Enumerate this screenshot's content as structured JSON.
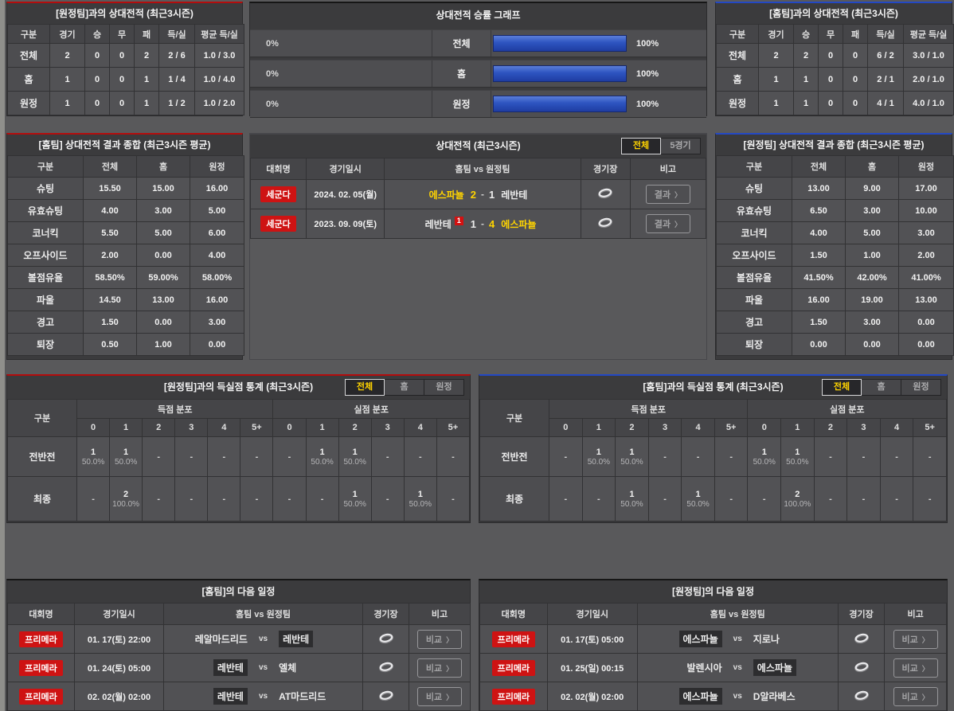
{
  "colors": {
    "accent_yellow": "#ffd400",
    "badge_red": "#ce1313",
    "bar_blue": "#2d54c0",
    "panel_border_red": "#b30d0d",
    "panel_border_blue": "#2348c4",
    "page_background": "#59595b"
  },
  "icons": {
    "chevron": "〉",
    "stadium": "stadium-ring"
  },
  "away_h2h": {
    "title": "[원정팀]과의 상대전적 (최근3시즌)",
    "headers": [
      "구분",
      "경기",
      "승",
      "무",
      "패",
      "득/실",
      "평균 득/실"
    ],
    "rows": [
      {
        "label": "전체",
        "cells": [
          "2",
          "0",
          "0",
          "2",
          "2 / 6",
          "1.0 / 3.0"
        ]
      },
      {
        "label": "홈",
        "cells": [
          "1",
          "0",
          "0",
          "1",
          "1 / 4",
          "1.0 / 4.0"
        ]
      },
      {
        "label": "원정",
        "cells": [
          "1",
          "0",
          "0",
          "1",
          "1 / 2",
          "1.0 / 2.0"
        ]
      }
    ]
  },
  "winrate_graph": {
    "title": "상대전적 승률 그래프",
    "rows": [
      {
        "label": "전체",
        "left_pct": "0%",
        "left_value": 0,
        "right_pct": "100%",
        "right_value": 100
      },
      {
        "label": "홈",
        "left_pct": "0%",
        "left_value": 0,
        "right_pct": "100%",
        "right_value": 100
      },
      {
        "label": "원정",
        "left_pct": "0%",
        "left_value": 0,
        "right_pct": "100%",
        "right_value": 100
      }
    ]
  },
  "home_h2h": {
    "title": "[홈팀]과의 상대전적 (최근3시즌)",
    "headers": [
      "구분",
      "경기",
      "승",
      "무",
      "패",
      "득/실",
      "평균 득/실"
    ],
    "rows": [
      {
        "label": "전체",
        "cells": [
          "2",
          "2",
          "0",
          "0",
          "6 / 2",
          "3.0 / 1.0"
        ]
      },
      {
        "label": "홈",
        "cells": [
          "1",
          "1",
          "0",
          "0",
          "2 / 1",
          "2.0 / 1.0"
        ]
      },
      {
        "label": "원정",
        "cells": [
          "1",
          "1",
          "0",
          "0",
          "4 / 1",
          "4.0 / 1.0"
        ]
      }
    ]
  },
  "home_summary": {
    "title": "[홈팀] 상대전적 결과 종합 (최근3시즌 평균)",
    "headers": [
      "구분",
      "전체",
      "홈",
      "원정"
    ],
    "rows": [
      {
        "label": "슈팅",
        "cells": [
          "15.50",
          "15.00",
          "16.00"
        ]
      },
      {
        "label": "유효슈팅",
        "cells": [
          "4.00",
          "3.00",
          "5.00"
        ]
      },
      {
        "label": "코너킥",
        "cells": [
          "5.50",
          "5.00",
          "6.00"
        ]
      },
      {
        "label": "오프사이드",
        "cells": [
          "2.00",
          "0.00",
          "4.00"
        ]
      },
      {
        "label": "볼점유율",
        "cells": [
          "58.50%",
          "59.00%",
          "58.00%"
        ]
      },
      {
        "label": "파울",
        "cells": [
          "14.50",
          "13.00",
          "16.00"
        ]
      },
      {
        "label": "경고",
        "cells": [
          "1.50",
          "0.00",
          "3.00"
        ]
      },
      {
        "label": "퇴장",
        "cells": [
          "0.50",
          "1.00",
          "0.00"
        ]
      }
    ]
  },
  "h2h_matches": {
    "title": "상대전적 (최근3시즌)",
    "tabs": [
      {
        "label": "전체",
        "active": true
      },
      {
        "label": "5경기",
        "active": false
      }
    ],
    "headers": [
      "대회명",
      "경기일시",
      "홈팀  vs  원정팀",
      "경기장",
      "비고"
    ],
    "button_label": "결과",
    "rows": [
      {
        "league": "세군다",
        "date": "2024. 02. 05(월)",
        "home": "에스파뇰",
        "home_win": true,
        "home_badge": null,
        "score_home": "2",
        "score_away": "1",
        "home_score_win": true,
        "away_score_win": false,
        "away": "레반테",
        "away_win": false,
        "away_badge": null
      },
      {
        "league": "세군다",
        "date": "2023. 09. 09(토)",
        "home": "레반테",
        "home_win": false,
        "home_badge": "1",
        "score_home": "1",
        "score_away": "4",
        "home_score_win": false,
        "away_score_win": true,
        "away": "에스파뇰",
        "away_win": true,
        "away_badge": null
      }
    ]
  },
  "away_summary": {
    "title": "[원정팀] 상대전적 결과 종합 (최근3시즌 평균)",
    "headers": [
      "구분",
      "전체",
      "홈",
      "원정"
    ],
    "rows": [
      {
        "label": "슈팅",
        "cells": [
          "13.00",
          "9.00",
          "17.00"
        ]
      },
      {
        "label": "유효슈팅",
        "cells": [
          "6.50",
          "3.00",
          "10.00"
        ]
      },
      {
        "label": "코너킥",
        "cells": [
          "4.00",
          "5.00",
          "3.00"
        ]
      },
      {
        "label": "오프사이드",
        "cells": [
          "1.50",
          "1.00",
          "2.00"
        ]
      },
      {
        "label": "볼점유율",
        "cells": [
          "41.50%",
          "42.00%",
          "41.00%"
        ]
      },
      {
        "label": "파울",
        "cells": [
          "16.00",
          "19.00",
          "13.00"
        ]
      },
      {
        "label": "경고",
        "cells": [
          "1.50",
          "3.00",
          "0.00"
        ]
      },
      {
        "label": "퇴장",
        "cells": [
          "0.00",
          "0.00",
          "0.00"
        ]
      }
    ]
  },
  "goal_stats_away": {
    "title": "[원정팀]과의 득실점 통계 (최근3시즌)",
    "tabs": [
      {
        "label": "전체",
        "active": true
      },
      {
        "label": "홈",
        "active": false
      },
      {
        "label": "원정",
        "active": false
      }
    ],
    "corner_label": "구분",
    "groups": [
      "득점 분포",
      "실점 분포"
    ],
    "score_headers": [
      "0",
      "1",
      "2",
      "3",
      "4",
      "5+"
    ],
    "empty_mark": "-",
    "rows": [
      {
        "label": "전반전",
        "goals": [
          {
            "n": "1",
            "p": "50.0%"
          },
          {
            "n": "1",
            "p": "50.0%"
          },
          null,
          null,
          null,
          null
        ],
        "conceded": [
          null,
          {
            "n": "1",
            "p": "50.0%"
          },
          {
            "n": "1",
            "p": "50.0%"
          },
          null,
          null,
          null
        ]
      },
      {
        "label": "최종",
        "goals": [
          null,
          {
            "n": "2",
            "p": "100.0%"
          },
          null,
          null,
          null,
          null
        ],
        "conceded": [
          null,
          null,
          {
            "n": "1",
            "p": "50.0%"
          },
          null,
          {
            "n": "1",
            "p": "50.0%"
          },
          null
        ]
      }
    ]
  },
  "goal_stats_home": {
    "title": "[홈팀]과의 득실점 통계 (최근3시즌)",
    "tabs": [
      {
        "label": "전체",
        "active": true
      },
      {
        "label": "홈",
        "active": false
      },
      {
        "label": "원정",
        "active": false
      }
    ],
    "corner_label": "구분",
    "groups": [
      "득점 분포",
      "실점 분포"
    ],
    "score_headers": [
      "0",
      "1",
      "2",
      "3",
      "4",
      "5+"
    ],
    "empty_mark": "-",
    "rows": [
      {
        "label": "전반전",
        "goals": [
          null,
          {
            "n": "1",
            "p": "50.0%"
          },
          {
            "n": "1",
            "p": "50.0%"
          },
          null,
          null,
          null
        ],
        "conceded": [
          {
            "n": "1",
            "p": "50.0%"
          },
          {
            "n": "1",
            "p": "50.0%"
          },
          null,
          null,
          null,
          null
        ]
      },
      {
        "label": "최종",
        "goals": [
          null,
          null,
          {
            "n": "1",
            "p": "50.0%"
          },
          null,
          {
            "n": "1",
            "p": "50.0%"
          },
          null
        ],
        "conceded": [
          null,
          {
            "n": "2",
            "p": "100.0%"
          },
          null,
          null,
          null,
          null
        ]
      }
    ]
  },
  "schedule_home": {
    "title": "[홈팀]의 다음 일정",
    "headers": [
      "대회명",
      "경기일시",
      "홈팀  vs  원정팀",
      "경기장",
      "비고"
    ],
    "button_label": "비교",
    "rows": [
      {
        "league": "프리메라",
        "date": "01. 17(토) 22:00",
        "home": "레알마드리드",
        "away": "레반테",
        "highlight": "away"
      },
      {
        "league": "프리메라",
        "date": "01. 24(토) 05:00",
        "home": "레반테",
        "away": "엘체",
        "highlight": "home"
      },
      {
        "league": "프리메라",
        "date": "02. 02(월) 02:00",
        "home": "레반테",
        "away": "AT마드리드",
        "highlight": "home"
      }
    ]
  },
  "schedule_away": {
    "title": "[원정팀]의 다음 일정",
    "headers": [
      "대회명",
      "경기일시",
      "홈팀  vs  원정팀",
      "경기장",
      "비고"
    ],
    "button_label": "비교",
    "rows": [
      {
        "league": "프리메라",
        "date": "01. 17(토) 05:00",
        "home": "에스파뇰",
        "away": "지로나",
        "highlight": "home"
      },
      {
        "league": "프리메라",
        "date": "01. 25(일) 00:15",
        "home": "발렌시아",
        "away": "에스파뇰",
        "highlight": "away"
      },
      {
        "league": "프리메라",
        "date": "02. 02(월) 02:00",
        "home": "에스파뇰",
        "away": "D알라베스",
        "highlight": "home"
      }
    ]
  }
}
